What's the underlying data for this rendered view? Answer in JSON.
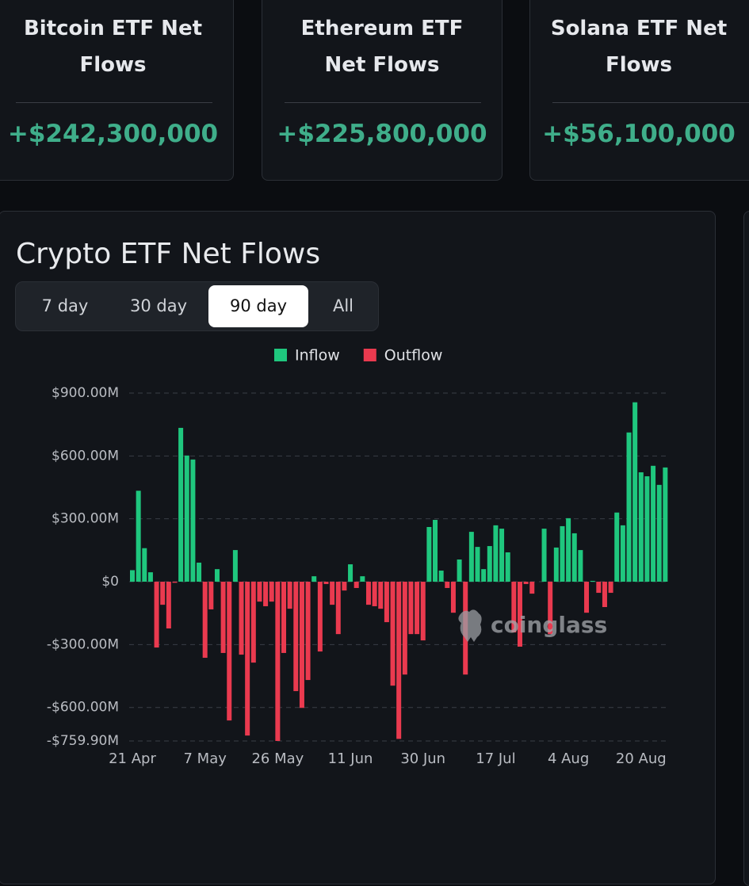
{
  "cards": [
    {
      "title": "Bitcoin ETF Net Flows",
      "value": "+$242,300,000"
    },
    {
      "title": "Ethereum ETF Net Flows",
      "value": "+$225,800,000"
    },
    {
      "title": "Solana ETF Net Flows",
      "value": "+$56,100,000"
    }
  ],
  "panel": {
    "title": "Crypto ETF Net Flows",
    "tabs": [
      "7 day",
      "30 day",
      "90 day",
      "All"
    ],
    "active_tab": 2
  },
  "chart_data": {
    "type": "bar",
    "watermark": "coinglass",
    "categories": [
      "21 Apr",
      null,
      null,
      null,
      null,
      null,
      null,
      null,
      null,
      null,
      null,
      null,
      "7 May",
      null,
      null,
      null,
      null,
      null,
      null,
      null,
      null,
      null,
      null,
      null,
      "26 May",
      null,
      null,
      null,
      null,
      null,
      null,
      null,
      null,
      null,
      null,
      null,
      "11 Jun",
      null,
      null,
      null,
      null,
      null,
      null,
      null,
      null,
      null,
      null,
      null,
      "30 Jun",
      null,
      null,
      null,
      null,
      null,
      null,
      null,
      null,
      null,
      null,
      null,
      "17 Jul",
      null,
      null,
      null,
      null,
      null,
      null,
      null,
      null,
      null,
      null,
      null,
      "4 Aug",
      null,
      null,
      null,
      null,
      null,
      null,
      null,
      null,
      null,
      null,
      null,
      "20 Aug",
      null,
      null,
      null,
      null
    ],
    "series": [
      {
        "name": "Inflow",
        "color": "#1fc77e",
        "values": [
          55,
          434,
          160,
          45,
          null,
          null,
          null,
          null,
          734,
          602,
          583,
          91,
          null,
          null,
          60,
          null,
          null,
          151,
          null,
          null,
          null,
          null,
          null,
          null,
          null,
          null,
          null,
          null,
          null,
          null,
          26,
          null,
          null,
          null,
          null,
          null,
          83,
          null,
          26,
          null,
          null,
          null,
          null,
          null,
          null,
          null,
          null,
          null,
          null,
          261,
          295,
          53,
          null,
          null,
          106,
          null,
          238,
          166,
          60,
          170,
          269,
          253,
          140,
          null,
          null,
          null,
          null,
          0,
          253,
          null,
          163,
          265,
          303,
          231,
          151,
          null,
          4,
          null,
          null,
          null,
          330,
          269,
          712,
          856,
          522,
          503,
          553,
          462,
          545
        ]
      },
      {
        "name": "Outflow",
        "color": "#ea3a4f",
        "values": [
          null,
          null,
          null,
          null,
          -314,
          -110,
          -223,
          -5,
          null,
          null,
          null,
          null,
          -363,
          -132,
          null,
          -340,
          -662,
          null,
          -348,
          -734,
          -386,
          -95,
          -117,
          -95,
          -759.9,
          -340,
          -129,
          -522,
          -602,
          -469,
          null,
          -333,
          -11,
          -110,
          -250,
          -42,
          null,
          -30,
          null,
          -110,
          -117,
          -129,
          -193,
          -496,
          -750,
          -443,
          -250,
          -250,
          -280,
          null,
          null,
          null,
          -30,
          -148,
          null,
          -443,
          null,
          null,
          null,
          null,
          null,
          null,
          null,
          -242,
          -310,
          -11,
          -57,
          null,
          null,
          -250,
          null,
          null,
          null,
          null,
          null,
          -148,
          null,
          -53,
          -121,
          -53,
          null,
          null,
          null,
          null,
          null,
          null,
          null,
          null,
          null
        ]
      }
    ],
    "ylim": [
      -759.9,
      900
    ],
    "yticks": [
      {
        "value": -759.9,
        "label": "-$759.90M"
      },
      {
        "value": -600,
        "label": "-$600.00M"
      },
      {
        "value": -300,
        "label": "-$300.00M"
      },
      {
        "value": 0,
        "label": "$0"
      },
      {
        "value": 300,
        "label": "$300.00M"
      },
      {
        "value": 600,
        "label": "$600.00M"
      },
      {
        "value": 900,
        "label": "$900.00M"
      }
    ],
    "grid": true,
    "legend": "top"
  }
}
